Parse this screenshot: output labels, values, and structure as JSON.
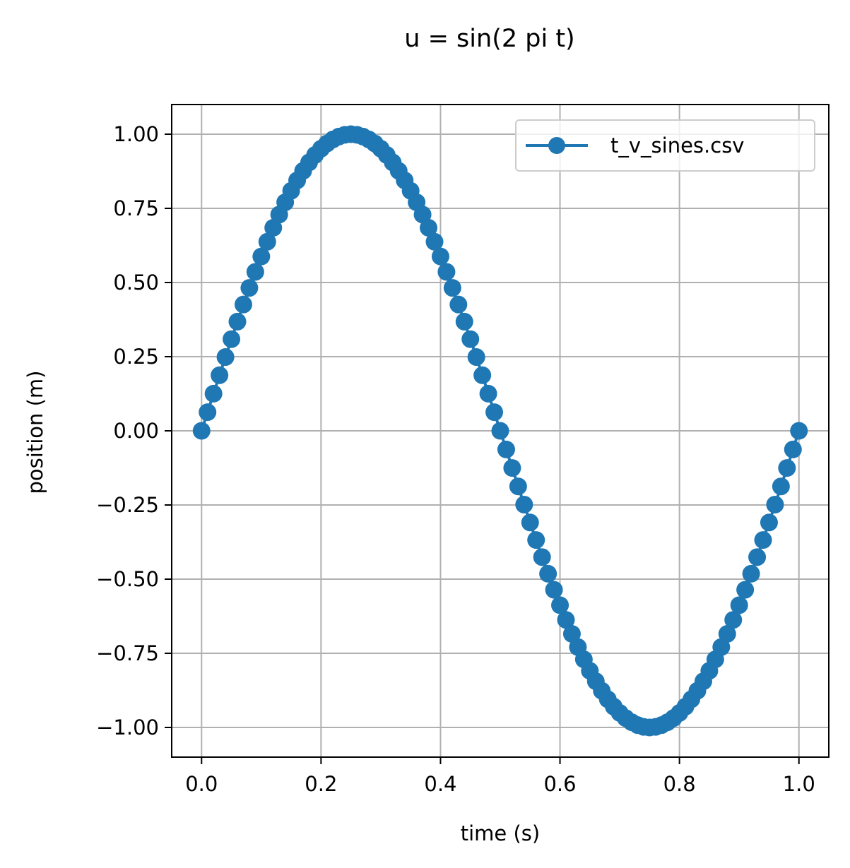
{
  "chart_data": {
    "type": "line",
    "title": "u = sin(2 pi t)",
    "xlabel": "time (s)",
    "ylabel": "position (m)",
    "xlim": [
      -0.05,
      1.05
    ],
    "ylim": [
      -1.1,
      1.1
    ],
    "x_ticks": [
      0.0,
      0.2,
      0.4,
      0.6,
      0.8,
      1.0
    ],
    "x_tick_labels": [
      "0.0",
      "0.2",
      "0.4",
      "0.6",
      "0.8",
      "1.0"
    ],
    "y_ticks": [
      1.0,
      0.75,
      0.5,
      0.25,
      0.0,
      -0.25,
      -0.5,
      -0.75,
      -1.0
    ],
    "y_tick_labels": [
      "1.00",
      "0.75",
      "0.50",
      "0.25",
      "0.00",
      "−0.25",
      "−0.50",
      "−0.75",
      "−1.00"
    ],
    "grid": true,
    "legend_position": "top-right",
    "marker": "circle",
    "series": [
      {
        "name": "t_v_sines.csv",
        "color": "#1f77b4",
        "x": [
          0.0,
          0.01,
          0.02,
          0.03,
          0.04,
          0.05,
          0.06,
          0.07,
          0.08,
          0.09,
          0.1,
          0.11,
          0.12,
          0.13,
          0.14,
          0.15,
          0.16,
          0.17,
          0.18,
          0.19,
          0.2,
          0.21,
          0.22,
          0.23,
          0.24,
          0.25,
          0.26,
          0.27,
          0.28,
          0.29,
          0.3,
          0.31,
          0.32,
          0.33,
          0.34,
          0.35,
          0.36,
          0.37,
          0.38,
          0.39,
          0.4,
          0.41,
          0.42,
          0.43,
          0.44,
          0.45,
          0.46,
          0.47,
          0.48,
          0.49,
          0.5,
          0.51,
          0.52,
          0.53,
          0.54,
          0.55,
          0.56,
          0.57,
          0.58,
          0.59,
          0.6,
          0.61,
          0.62,
          0.63,
          0.64,
          0.65,
          0.66,
          0.67,
          0.68,
          0.69,
          0.7,
          0.71,
          0.72,
          0.73,
          0.74,
          0.75,
          0.76,
          0.77,
          0.78,
          0.79,
          0.8,
          0.81,
          0.82,
          0.83,
          0.84,
          0.85,
          0.86,
          0.87,
          0.88,
          0.89,
          0.9,
          0.91,
          0.92,
          0.93,
          0.94,
          0.95,
          0.96,
          0.97,
          0.98,
          0.99,
          1.0
        ],
        "y": [
          0.0,
          0.0628,
          0.1253,
          0.1874,
          0.2487,
          0.309,
          0.3681,
          0.4258,
          0.4818,
          0.5358,
          0.5878,
          0.6374,
          0.6845,
          0.729,
          0.7705,
          0.809,
          0.8443,
          0.8763,
          0.9048,
          0.9298,
          0.9511,
          0.9686,
          0.9823,
          0.9921,
          0.998,
          1.0,
          0.998,
          0.9921,
          0.9823,
          0.9686,
          0.9511,
          0.9298,
          0.9048,
          0.8763,
          0.8443,
          0.809,
          0.7705,
          0.729,
          0.6845,
          0.6374,
          0.5878,
          0.5358,
          0.4818,
          0.4258,
          0.3681,
          0.309,
          0.2487,
          0.1874,
          0.1253,
          0.0628,
          0.0,
          -0.0628,
          -0.1253,
          -0.1874,
          -0.2487,
          -0.309,
          -0.3681,
          -0.4258,
          -0.4818,
          -0.5358,
          -0.5878,
          -0.6374,
          -0.6845,
          -0.729,
          -0.7705,
          -0.809,
          -0.8443,
          -0.8763,
          -0.9048,
          -0.9298,
          -0.9511,
          -0.9686,
          -0.9823,
          -0.9921,
          -0.998,
          -1.0,
          -0.998,
          -0.9921,
          -0.9823,
          -0.9686,
          -0.9511,
          -0.9298,
          -0.9048,
          -0.8763,
          -0.8443,
          -0.809,
          -0.7705,
          -0.729,
          -0.6845,
          -0.6374,
          -0.5878,
          -0.5358,
          -0.4818,
          -0.4258,
          -0.3681,
          -0.309,
          -0.2487,
          -0.1874,
          -0.1253,
          -0.0628,
          0.0
        ]
      }
    ]
  }
}
